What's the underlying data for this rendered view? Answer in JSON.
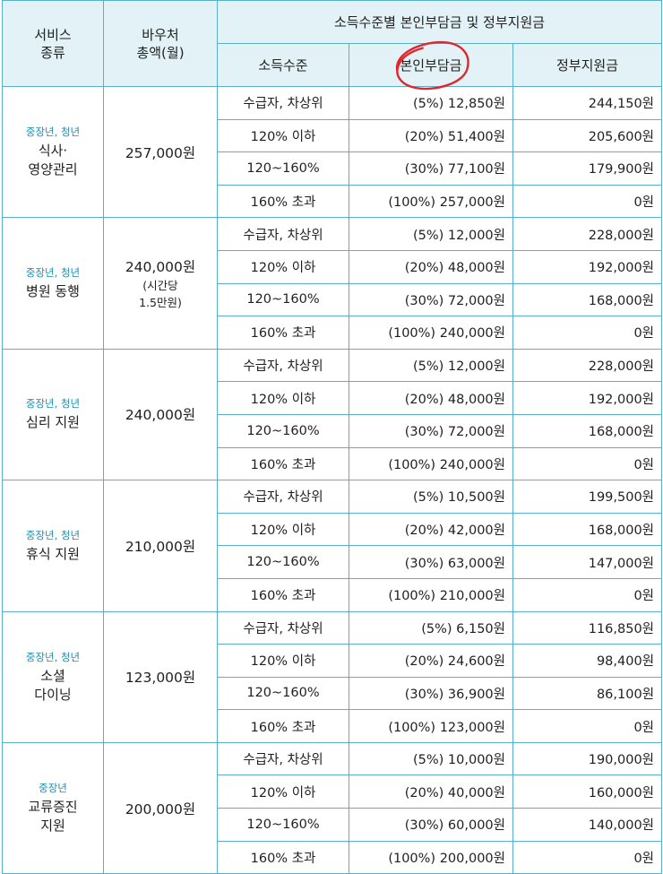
{
  "header": {
    "service_type": "서비스\n종류",
    "service_type_l1": "서비스",
    "service_type_l2": "종류",
    "voucher_total_l1": "바우처",
    "voucher_total_l2": "총액(월)",
    "group_title": "소득수준별 본인부담금 및 정부지원금",
    "col_level": "소득수준",
    "col_self": "본인부담금",
    "col_gov": "정부지원금"
  },
  "annotation_color": "#e0262e",
  "accent_color": "#1a8fb0",
  "border_color": "#5ab0c9",
  "header_bg": "#e3f2f7",
  "services": [
    {
      "target": "중장년, 청년",
      "name_l1": "식사·",
      "name_l2": "영양관리",
      "total": "257,000원",
      "note_l1": "",
      "note_l2": "",
      "rows": [
        {
          "level": "수급자, 차상위",
          "self": "(5%) 12,850원",
          "gov": "244,150원"
        },
        {
          "level": "120% 이하",
          "self": "(20%) 51,400원",
          "gov": "205,600원"
        },
        {
          "level": "120~160%",
          "self": "(30%) 77,100원",
          "gov": "179,900원"
        },
        {
          "level": "160% 초과",
          "self": "(100%) 257,000원",
          "gov": "0원"
        }
      ]
    },
    {
      "target": "중장년, 청년",
      "name_l1": "병원 동행",
      "name_l2": "",
      "total": "240,000원",
      "note_l1": "(시간당",
      "note_l2": "1.5만원)",
      "rows": [
        {
          "level": "수급자, 차상위",
          "self": "(5%) 12,000원",
          "gov": "228,000원"
        },
        {
          "level": "120% 이하",
          "self": "(20%) 48,000원",
          "gov": "192,000원"
        },
        {
          "level": "120~160%",
          "self": "(30%) 72,000원",
          "gov": "168,000원"
        },
        {
          "level": "160% 초과",
          "self": "(100%) 240,000원",
          "gov": "0원"
        }
      ]
    },
    {
      "target": "중장년, 청년",
      "name_l1": "심리 지원",
      "name_l2": "",
      "total": "240,000원",
      "note_l1": "",
      "note_l2": "",
      "rows": [
        {
          "level": "수급자, 차상위",
          "self": "(5%) 12,000원",
          "gov": "228,000원"
        },
        {
          "level": "120% 이하",
          "self": "(20%) 48,000원",
          "gov": "192,000원"
        },
        {
          "level": "120~160%",
          "self": "(30%) 72,000원",
          "gov": "168,000원"
        },
        {
          "level": "160% 초과",
          "self": "(100%) 240,000원",
          "gov": "0원"
        }
      ]
    },
    {
      "target": "중장년, 청년",
      "name_l1": "휴식 지원",
      "name_l2": "",
      "total": "210,000원",
      "note_l1": "",
      "note_l2": "",
      "rows": [
        {
          "level": "수급자, 차상위",
          "self": "(5%) 10,500원",
          "gov": "199,500원"
        },
        {
          "level": "120% 이하",
          "self": "(20%) 42,000원",
          "gov": "168,000원"
        },
        {
          "level": "120~160%",
          "self": "(30%) 63,000원",
          "gov": "147,000원"
        },
        {
          "level": "160% 초과",
          "self": "(100%) 210,000원",
          "gov": "0원"
        }
      ]
    },
    {
      "target": "중장년, 청년",
      "name_l1": "소셜",
      "name_l2": "다이닝",
      "total": "123,000원",
      "note_l1": "",
      "note_l2": "",
      "rows": [
        {
          "level": "수급자, 차상위",
          "self": "(5%) 6,150원",
          "gov": "116,850원"
        },
        {
          "level": "120% 이하",
          "self": "(20%) 24,600원",
          "gov": "98,400원"
        },
        {
          "level": "120~160%",
          "self": "(30%) 36,900원",
          "gov": "86,100원"
        },
        {
          "level": "160% 초과",
          "self": "(100%) 123,000원",
          "gov": "0원"
        }
      ]
    },
    {
      "target": "중장년",
      "name_l1": "교류증진",
      "name_l2": "지원",
      "total": "200,000원",
      "note_l1": "",
      "note_l2": "",
      "rows": [
        {
          "level": "수급자, 차상위",
          "self": "(5%) 10,000원",
          "gov": "190,000원"
        },
        {
          "level": "120% 이하",
          "self": "(20%) 40,000원",
          "gov": "160,000원"
        },
        {
          "level": "120~160%",
          "self": "(30%) 60,000원",
          "gov": "140,000원"
        },
        {
          "level": "160% 초과",
          "self": "(100%) 200,000원",
          "gov": "0원"
        }
      ]
    }
  ]
}
